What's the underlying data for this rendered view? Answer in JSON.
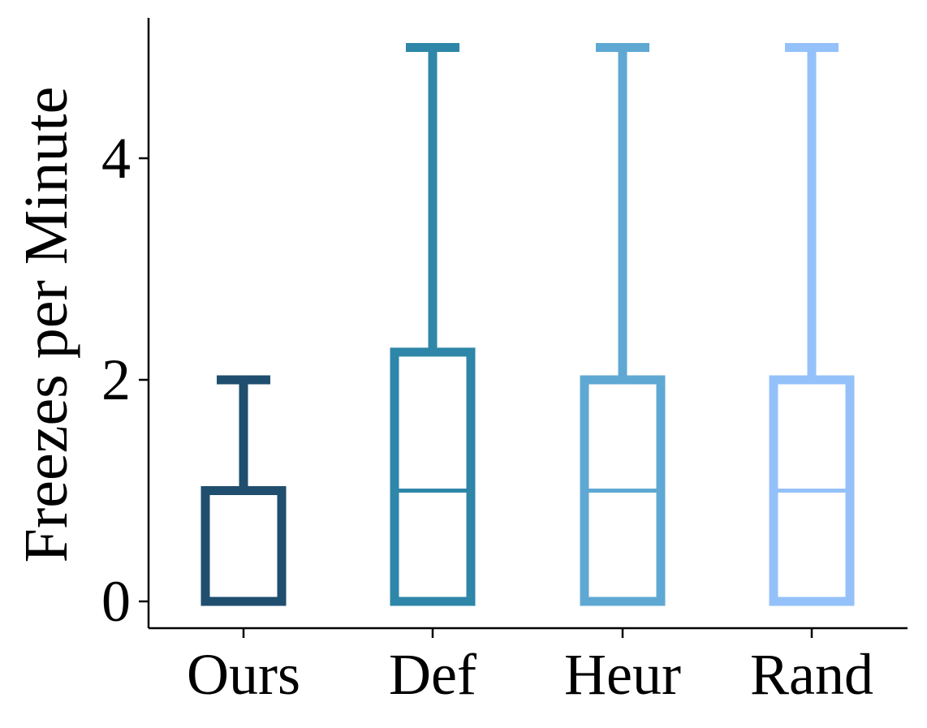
{
  "chart_data": {
    "type": "box",
    "title": "",
    "xlabel": "",
    "ylabel": "Freezes per Minute",
    "ylim": [
      -0.25,
      5.25
    ],
    "yticks": [
      0,
      2,
      4
    ],
    "grid": false,
    "legend": "none",
    "categories": [
      "Ours",
      "Def",
      "Heur",
      "Rand"
    ],
    "series": [
      {
        "category": "Ours",
        "color": "#1f4e6e",
        "whisker_low": 0,
        "q1": 0,
        "median": 0,
        "q3": 1,
        "whisker_high": 2
      },
      {
        "category": "Def",
        "color": "#2e86a8",
        "whisker_low": 0,
        "q1": 0,
        "median": 1,
        "q3": 2.25,
        "whisker_high": 5
      },
      {
        "category": "Heur",
        "color": "#5fa8d3",
        "whisker_low": 0,
        "q1": 0,
        "median": 1,
        "q3": 2,
        "whisker_high": 5
      },
      {
        "category": "Rand",
        "color": "#94c1f9",
        "whisker_low": 0,
        "q1": 0,
        "median": 1,
        "q3": 2,
        "whisker_high": 5
      }
    ]
  }
}
